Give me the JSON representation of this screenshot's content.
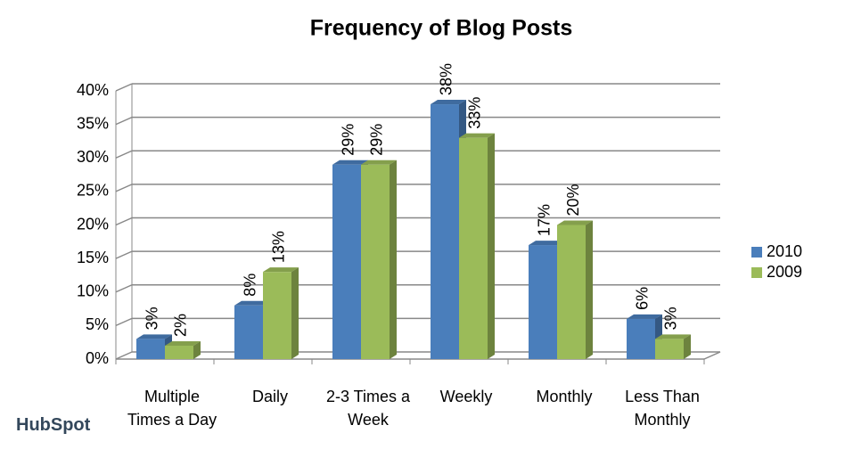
{
  "chart_data": {
    "type": "bar",
    "title": "Frequency of Blog Posts",
    "categories": [
      "Multiple Times a Day",
      "Daily",
      "2-3 Times a Week",
      "Weekly",
      "Monthly",
      "Less Than Monthly"
    ],
    "series": [
      {
        "name": "2010",
        "color": "#4a7ebb",
        "values": [
          3,
          8,
          29,
          38,
          17,
          6
        ],
        "value_labels": [
          "3%",
          "8%",
          "29%",
          "38%",
          "17%",
          "6%"
        ]
      },
      {
        "name": "2009",
        "color": "#9bbb59",
        "values": [
          2,
          13,
          29,
          33,
          20,
          3
        ],
        "value_labels": [
          "2%",
          "13%",
          "29%",
          "33%",
          "20%",
          "3%"
        ]
      }
    ],
    "ylim": [
      0,
      40
    ],
    "yticks": [
      {
        "value": 0,
        "label": "0%"
      },
      {
        "value": 5,
        "label": "5%"
      },
      {
        "value": 10,
        "label": "10%"
      },
      {
        "value": 15,
        "label": "15%"
      },
      {
        "value": 20,
        "label": "20%"
      },
      {
        "value": 25,
        "label": "25%"
      },
      {
        "value": 30,
        "label": "30%"
      },
      {
        "value": 35,
        "label": "35%"
      },
      {
        "value": 40,
        "label": "40%"
      }
    ],
    "grid": true,
    "legend": "right"
  },
  "logo": "HubSpot"
}
